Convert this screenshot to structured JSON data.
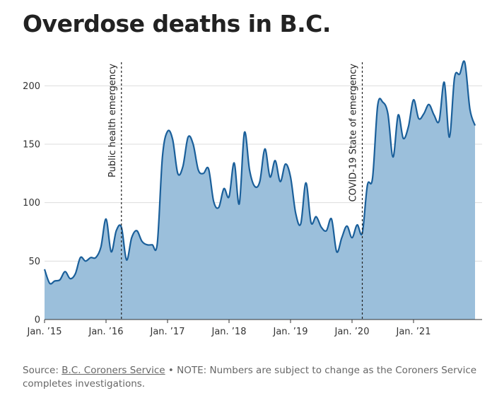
{
  "title": "Overdose deaths in B.C.",
  "colors": {
    "line": "#1a5f9a",
    "area": "#9bbfdb",
    "grid": "#dddddd",
    "axis": "#333333"
  },
  "footer": {
    "source_prefix": "Source: ",
    "source_link": "B.C. Coroners Service",
    "bullet": " • ",
    "note": "NOTE: Numbers are subject to change as the Coroners Service completes investigations."
  },
  "chart_data": {
    "type": "area",
    "title": "Overdose deaths in B.C.",
    "xlabel": "",
    "ylabel": "",
    "ylim": [
      0,
      225
    ],
    "yticks": [
      0,
      50,
      100,
      150,
      200
    ],
    "grid": true,
    "xtick_labels": [
      "Jan. ’15",
      "Jan. ’16",
      "Jan. ’17",
      "Jan. ’18",
      "Jan. ’19",
      "Jan. ’20",
      "Jan. ’21"
    ],
    "x_start": "2015-01",
    "annotations": [
      {
        "label": "Public health emergency",
        "month": "2016-04"
      },
      {
        "label": "COVID-19 State of emergency",
        "month": "2020-03"
      }
    ],
    "series": [
      {
        "values": [
          43,
          31,
          33,
          34,
          41,
          35,
          39,
          53,
          50,
          53,
          53,
          62,
          86,
          58,
          76,
          79,
          51,
          70,
          76,
          67,
          64,
          64,
          65,
          139,
          161,
          154,
          125,
          131,
          156,
          150,
          128,
          125,
          129,
          101,
          96,
          112,
          105,
          134,
          99,
          160,
          128,
          114,
          118,
          146,
          122,
          136,
          118,
          133,
          122,
          91,
          82,
          117,
          83,
          88,
          79,
          76,
          86,
          58,
          70,
          80,
          70,
          81,
          74,
          115,
          121,
          183,
          186,
          176,
          139,
          175,
          155,
          165,
          188,
          172,
          176,
          184,
          175,
          170,
          203,
          156,
          207,
          210,
          220,
          180,
          166
        ]
      }
    ]
  }
}
